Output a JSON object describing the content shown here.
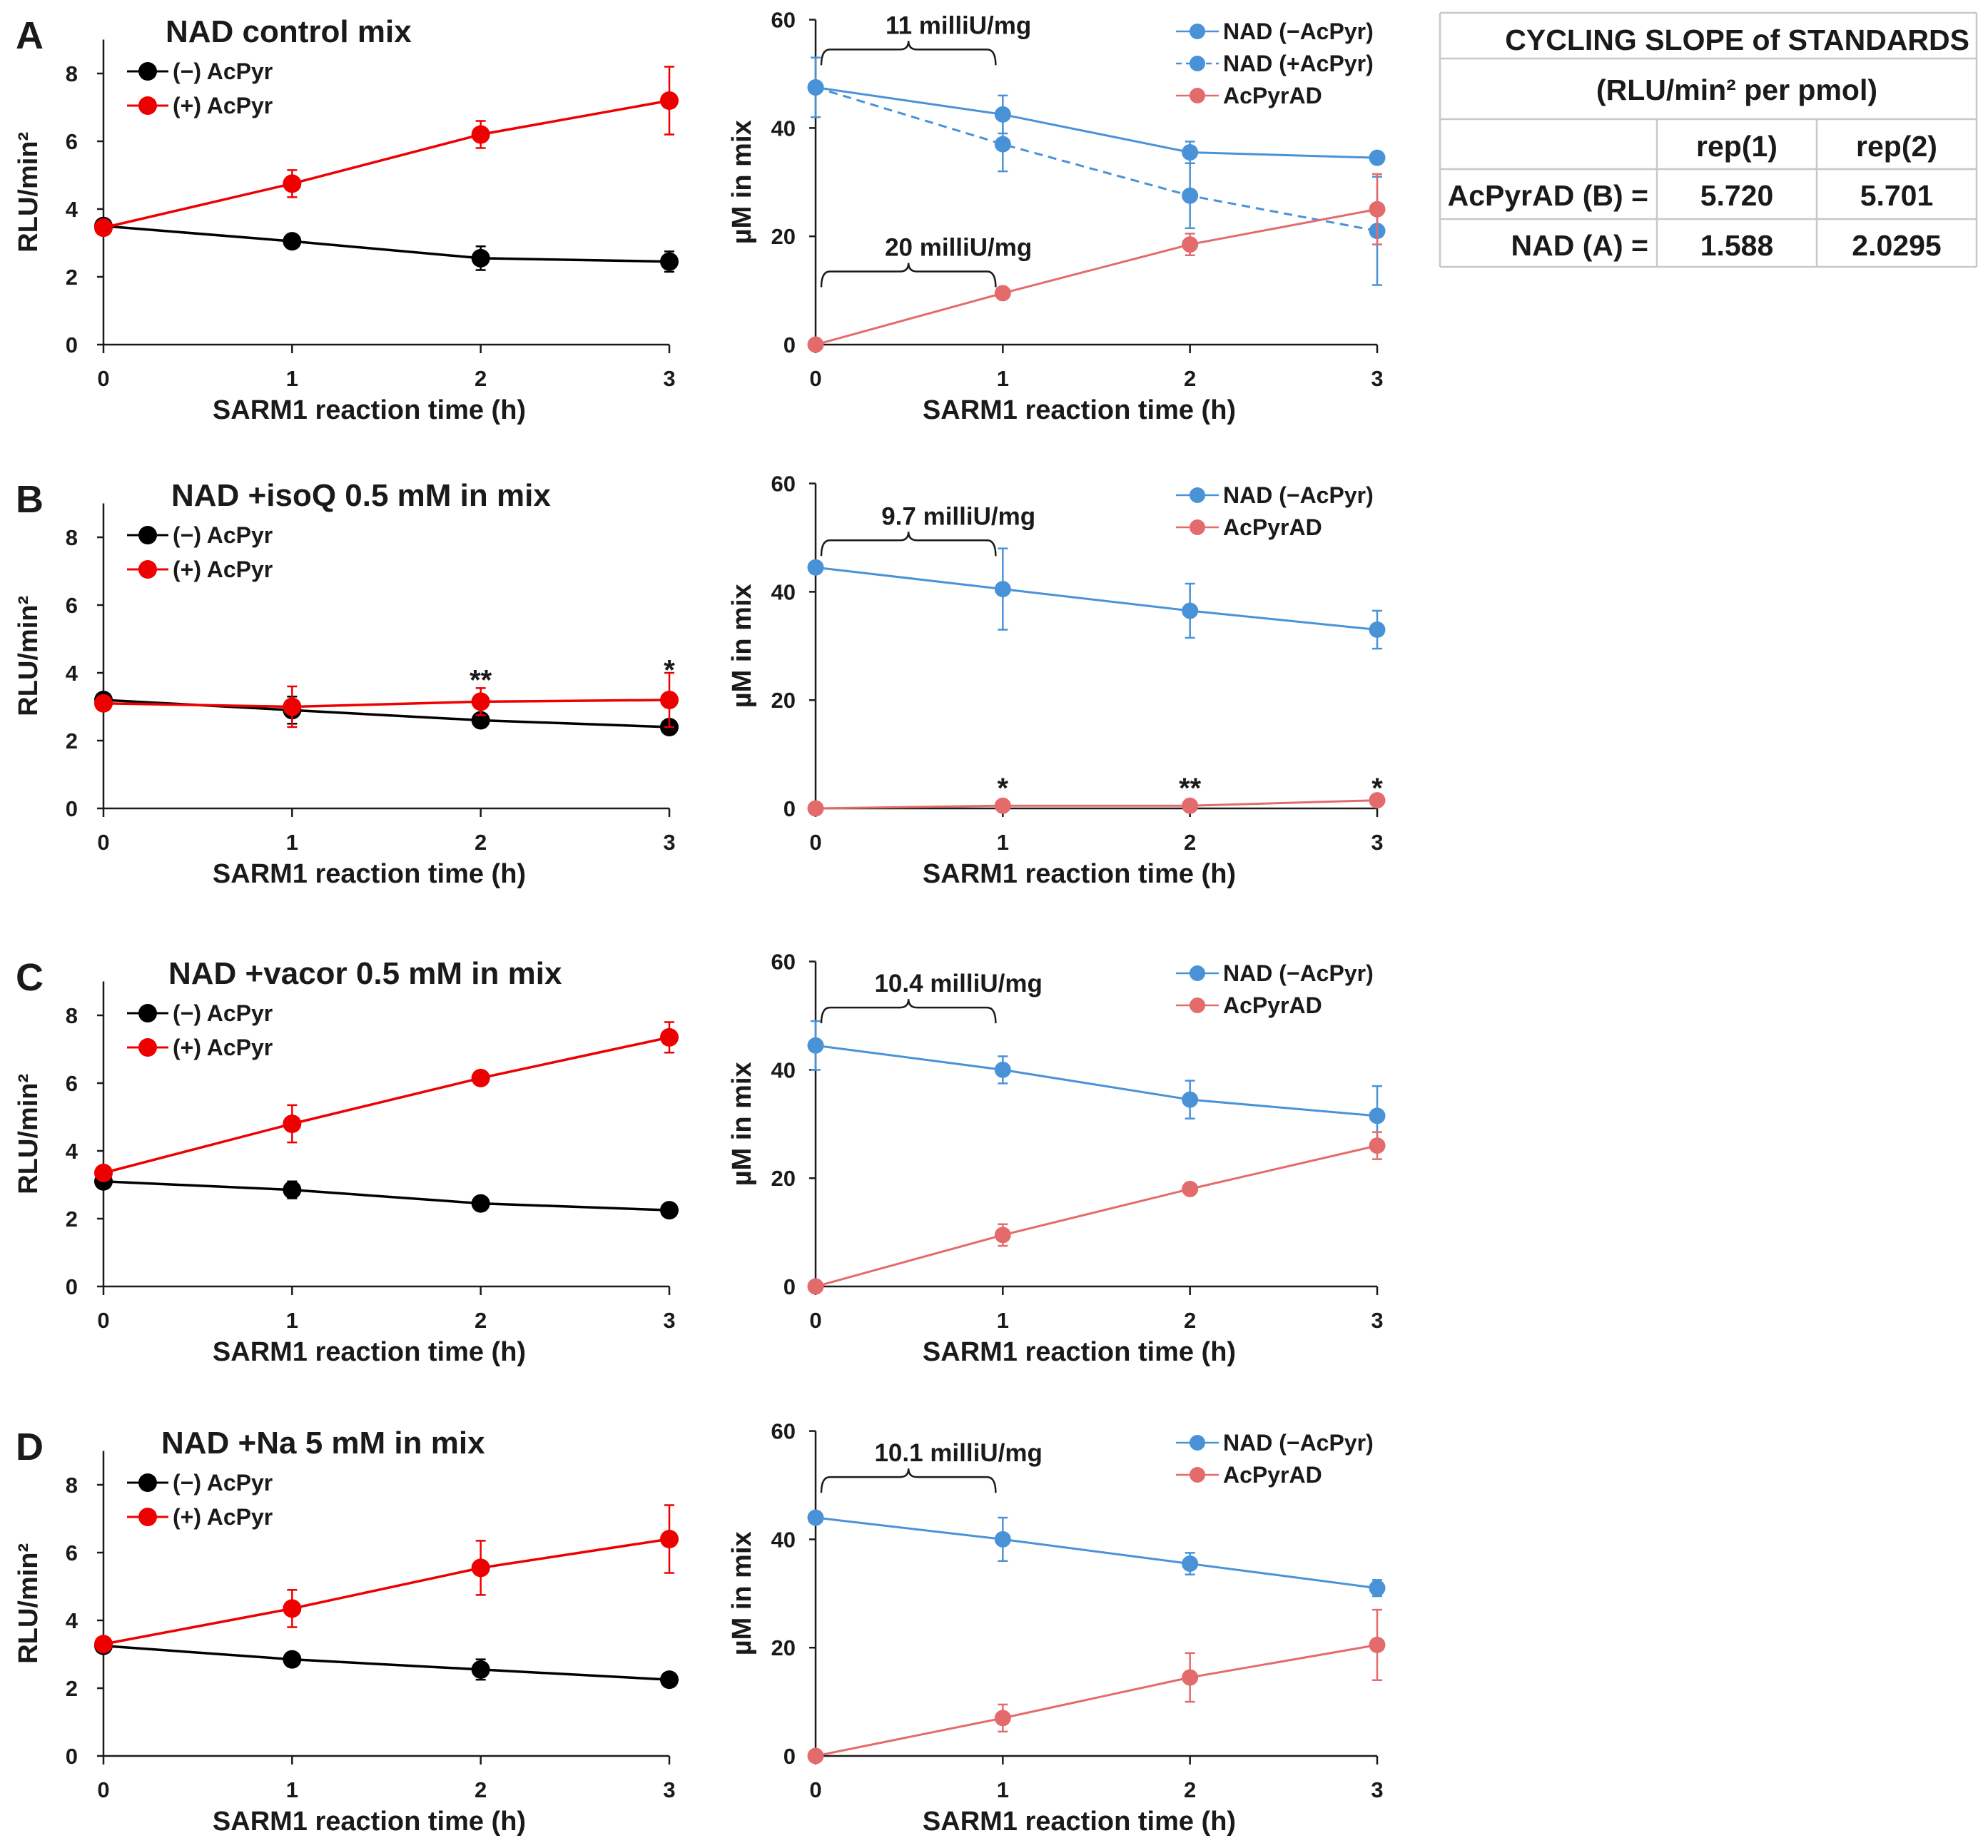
{
  "colors": {
    "black_series": "#000000",
    "red_series": "#ee0000",
    "blue_series": "#4a92d8",
    "salmon_series": "#e46b6b"
  },
  "chart_data": [
    {
      "id": "A-left",
      "panel": "A",
      "type": "line",
      "title": "NAD control mix",
      "xlabel": "SARM1 reaction time (h)",
      "ylabel": "RLU/min²",
      "x": [
        0,
        1,
        2,
        3
      ],
      "xticks": [
        "0",
        "1",
        "2",
        "3"
      ],
      "ylim": [
        0,
        9
      ],
      "yticks": [
        0,
        2,
        4,
        6,
        8
      ],
      "series": [
        {
          "name": "(−) AcPyr",
          "color": "#000000",
          "values": [
            3.5,
            3.05,
            2.55,
            2.45
          ],
          "errors": [
            0.1,
            0.2,
            0.35,
            0.3
          ]
        },
        {
          "name": "(+) AcPyr",
          "color": "#ee0000",
          "values": [
            3.45,
            4.75,
            6.2,
            7.2
          ],
          "errors": [
            0.15,
            0.4,
            0.4,
            1.0
          ]
        }
      ],
      "annotations": []
    },
    {
      "id": "A-right",
      "panel": "A",
      "type": "line",
      "title": "",
      "xlabel": "SARM1 reaction time (h)",
      "ylabel": "µM in mix",
      "x": [
        0,
        1,
        2,
        3
      ],
      "xticks": [
        "0",
        "1",
        "2",
        "3"
      ],
      "ylim": [
        0,
        60
      ],
      "yticks": [
        0,
        20,
        40,
        60
      ],
      "series": [
        {
          "name": "NAD (−AcPyr)",
          "color": "#4a92d8",
          "dashed": false,
          "values": [
            47.5,
            42.5,
            35.5,
            34.5
          ],
          "errors": [
            0,
            3.5,
            2.0,
            0
          ]
        },
        {
          "name": "NAD (+AcPyr)",
          "color": "#4a92d8",
          "dashed": true,
          "values": [
            47.5,
            37.0,
            27.5,
            21.0
          ],
          "errors": [
            5.5,
            5.0,
            6.0,
            10.0
          ]
        },
        {
          "name": "AcPyrAD",
          "color": "#e46b6b",
          "dashed": false,
          "values": [
            0,
            9.5,
            18.5,
            25.0
          ],
          "errors": [
            0,
            0,
            2.0,
            6.5
          ]
        }
      ],
      "annotations": [
        {
          "text": "11 milliU/mg",
          "from": 0,
          "to": 1,
          "level": 54.5
        },
        {
          "text": "20 milliU/mg",
          "from": 0,
          "to": 1,
          "level": 13.5
        }
      ]
    },
    {
      "id": "B-left",
      "panel": "B",
      "type": "line",
      "title": "NAD +isoQ 0.5 mM in mix",
      "xlabel": "SARM1 reaction time (h)",
      "ylabel": "RLU/min²",
      "x": [
        0,
        1,
        2,
        3
      ],
      "xticks": [
        "0",
        "1",
        "2",
        "3"
      ],
      "ylim": [
        0,
        9
      ],
      "yticks": [
        0,
        2,
        4,
        6,
        8
      ],
      "series": [
        {
          "name": "(−) AcPyr",
          "color": "#000000",
          "values": [
            3.2,
            2.9,
            2.6,
            2.4
          ],
          "errors": [
            0.1,
            0.4,
            0.15,
            0.15
          ]
        },
        {
          "name": "(+) AcPyr",
          "color": "#ee0000",
          "values": [
            3.1,
            3.0,
            3.15,
            3.2
          ],
          "errors": [
            0.2,
            0.6,
            0.4,
            0.8
          ]
        }
      ],
      "stars": [
        {
          "text": "**",
          "x": 2,
          "value": 3.8
        },
        {
          "text": "*",
          "x": 3,
          "value": 4.1
        }
      ],
      "annotations": []
    },
    {
      "id": "B-right",
      "panel": "B",
      "type": "line",
      "title": "",
      "xlabel": "SARM1 reaction time (h)",
      "ylabel": "µM in mix",
      "x": [
        0,
        1,
        2,
        3
      ],
      "xticks": [
        "0",
        "1",
        "2",
        "3"
      ],
      "ylim": [
        0,
        60
      ],
      "yticks": [
        0,
        20,
        40,
        60
      ],
      "series": [
        {
          "name": "NAD (−AcPyr)",
          "color": "#4a92d8",
          "dashed": false,
          "values": [
            44.5,
            40.5,
            36.5,
            33.0
          ],
          "errors": [
            0,
            7.5,
            5.0,
            3.5
          ]
        },
        {
          "name": "AcPyrAD",
          "color": "#e46b6b",
          "dashed": false,
          "values": [
            0,
            0.5,
            0.5,
            1.5
          ],
          "errors": [
            0,
            0,
            0,
            0
          ]
        }
      ],
      "stars": [
        {
          "text": "*",
          "x": 1,
          "value": 3.8
        },
        {
          "text": "**",
          "x": 2,
          "value": 3.8
        },
        {
          "text": "*",
          "x": 3,
          "value": 3.8
        }
      ],
      "annotations": [
        {
          "text": "9.7 milliU/mg",
          "from": 0,
          "to": 1,
          "level": 49.5
        }
      ]
    },
    {
      "id": "C-left",
      "panel": "C",
      "type": "line",
      "title": "NAD +vacor 0.5 mM in mix",
      "xlabel": "SARM1 reaction time (h)",
      "ylabel": "RLU/min²",
      "x": [
        0,
        1,
        2,
        3
      ],
      "xticks": [
        "0",
        "1",
        "2",
        "3"
      ],
      "ylim": [
        0,
        9
      ],
      "yticks": [
        0,
        2,
        4,
        6,
        8
      ],
      "series": [
        {
          "name": "(−) AcPyr",
          "color": "#000000",
          "values": [
            3.1,
            2.85,
            2.45,
            2.25
          ],
          "errors": [
            0.1,
            0.25,
            0.1,
            0.1
          ]
        },
        {
          "name": "(+) AcPyr",
          "color": "#ee0000",
          "values": [
            3.35,
            4.8,
            6.15,
            7.35
          ],
          "errors": [
            0.15,
            0.55,
            0.15,
            0.45
          ]
        }
      ],
      "annotations": []
    },
    {
      "id": "C-right",
      "panel": "C",
      "type": "line",
      "title": "",
      "xlabel": "SARM1 reaction time (h)",
      "ylabel": "µM in mix",
      "x": [
        0,
        1,
        2,
        3
      ],
      "xticks": [
        "0",
        "1",
        "2",
        "3"
      ],
      "ylim": [
        0,
        60
      ],
      "yticks": [
        0,
        20,
        40,
        60
      ],
      "series": [
        {
          "name": "NAD (−AcPyr)",
          "color": "#4a92d8",
          "dashed": false,
          "values": [
            44.5,
            40.0,
            34.5,
            31.5
          ],
          "errors": [
            4.5,
            2.5,
            3.5,
            5.5
          ]
        },
        {
          "name": "AcPyrAD",
          "color": "#e46b6b",
          "dashed": false,
          "values": [
            0,
            9.5,
            18.0,
            26.0
          ],
          "errors": [
            0,
            2.0,
            0,
            2.5
          ]
        }
      ],
      "annotations": [
        {
          "text": "10.4 milliU/mg",
          "from": 0,
          "to": 1,
          "level": 51.5
        }
      ]
    },
    {
      "id": "D-left",
      "panel": "D",
      "type": "line",
      "title": "NAD +Na 5 mM in mix",
      "xlabel": "SARM1 reaction time (h)",
      "ylabel": "RLU/min²",
      "x": [
        0,
        1,
        2,
        3
      ],
      "xticks": [
        "0",
        "1",
        "2",
        "3"
      ],
      "ylim": [
        0,
        9
      ],
      "yticks": [
        0,
        2,
        4,
        6,
        8
      ],
      "series": [
        {
          "name": "(−) AcPyr",
          "color": "#000000",
          "values": [
            3.25,
            2.85,
            2.55,
            2.25
          ],
          "errors": [
            0.1,
            0.15,
            0.3,
            0.15
          ]
        },
        {
          "name": "(+) AcPyr",
          "color": "#ee0000",
          "values": [
            3.3,
            4.35,
            5.55,
            6.4
          ],
          "errors": [
            0.15,
            0.55,
            0.8,
            1.0
          ]
        }
      ],
      "annotations": []
    },
    {
      "id": "D-right",
      "panel": "D",
      "type": "line",
      "title": "",
      "xlabel": "SARM1 reaction time (h)",
      "ylabel": "µM in mix",
      "x": [
        0,
        1,
        2,
        3
      ],
      "xticks": [
        "0",
        "1",
        "2",
        "3"
      ],
      "ylim": [
        0,
        60
      ],
      "yticks": [
        0,
        20,
        40,
        60
      ],
      "series": [
        {
          "name": "NAD (−AcPyr)",
          "color": "#4a92d8",
          "dashed": false,
          "values": [
            44.0,
            40.0,
            35.5,
            31.0
          ],
          "errors": [
            0,
            4.0,
            2.0,
            1.5
          ]
        },
        {
          "name": "AcPyrAD",
          "color": "#e46b6b",
          "dashed": false,
          "values": [
            0,
            7.0,
            14.5,
            20.5
          ],
          "errors": [
            0,
            2.5,
            4.5,
            6.5
          ]
        }
      ],
      "annotations": [
        {
          "text": "10.1 milliU/mg",
          "from": 0,
          "to": 1,
          "level": 51.5
        }
      ]
    },
    {
      "id": "standards-table",
      "type": "table",
      "title": "CYCLING SLOPE of STANDARDS",
      "subtitle": "(RLU/min² per pmol)",
      "columns": [
        "rep(1)",
        "rep(2)"
      ],
      "rows": [
        {
          "label": "AcPyrAD (B) =",
          "values": [
            "5.720",
            "5.701"
          ]
        },
        {
          "label": "NAD (A) =",
          "values": [
            "1.588",
            "2.0295"
          ]
        }
      ]
    }
  ]
}
